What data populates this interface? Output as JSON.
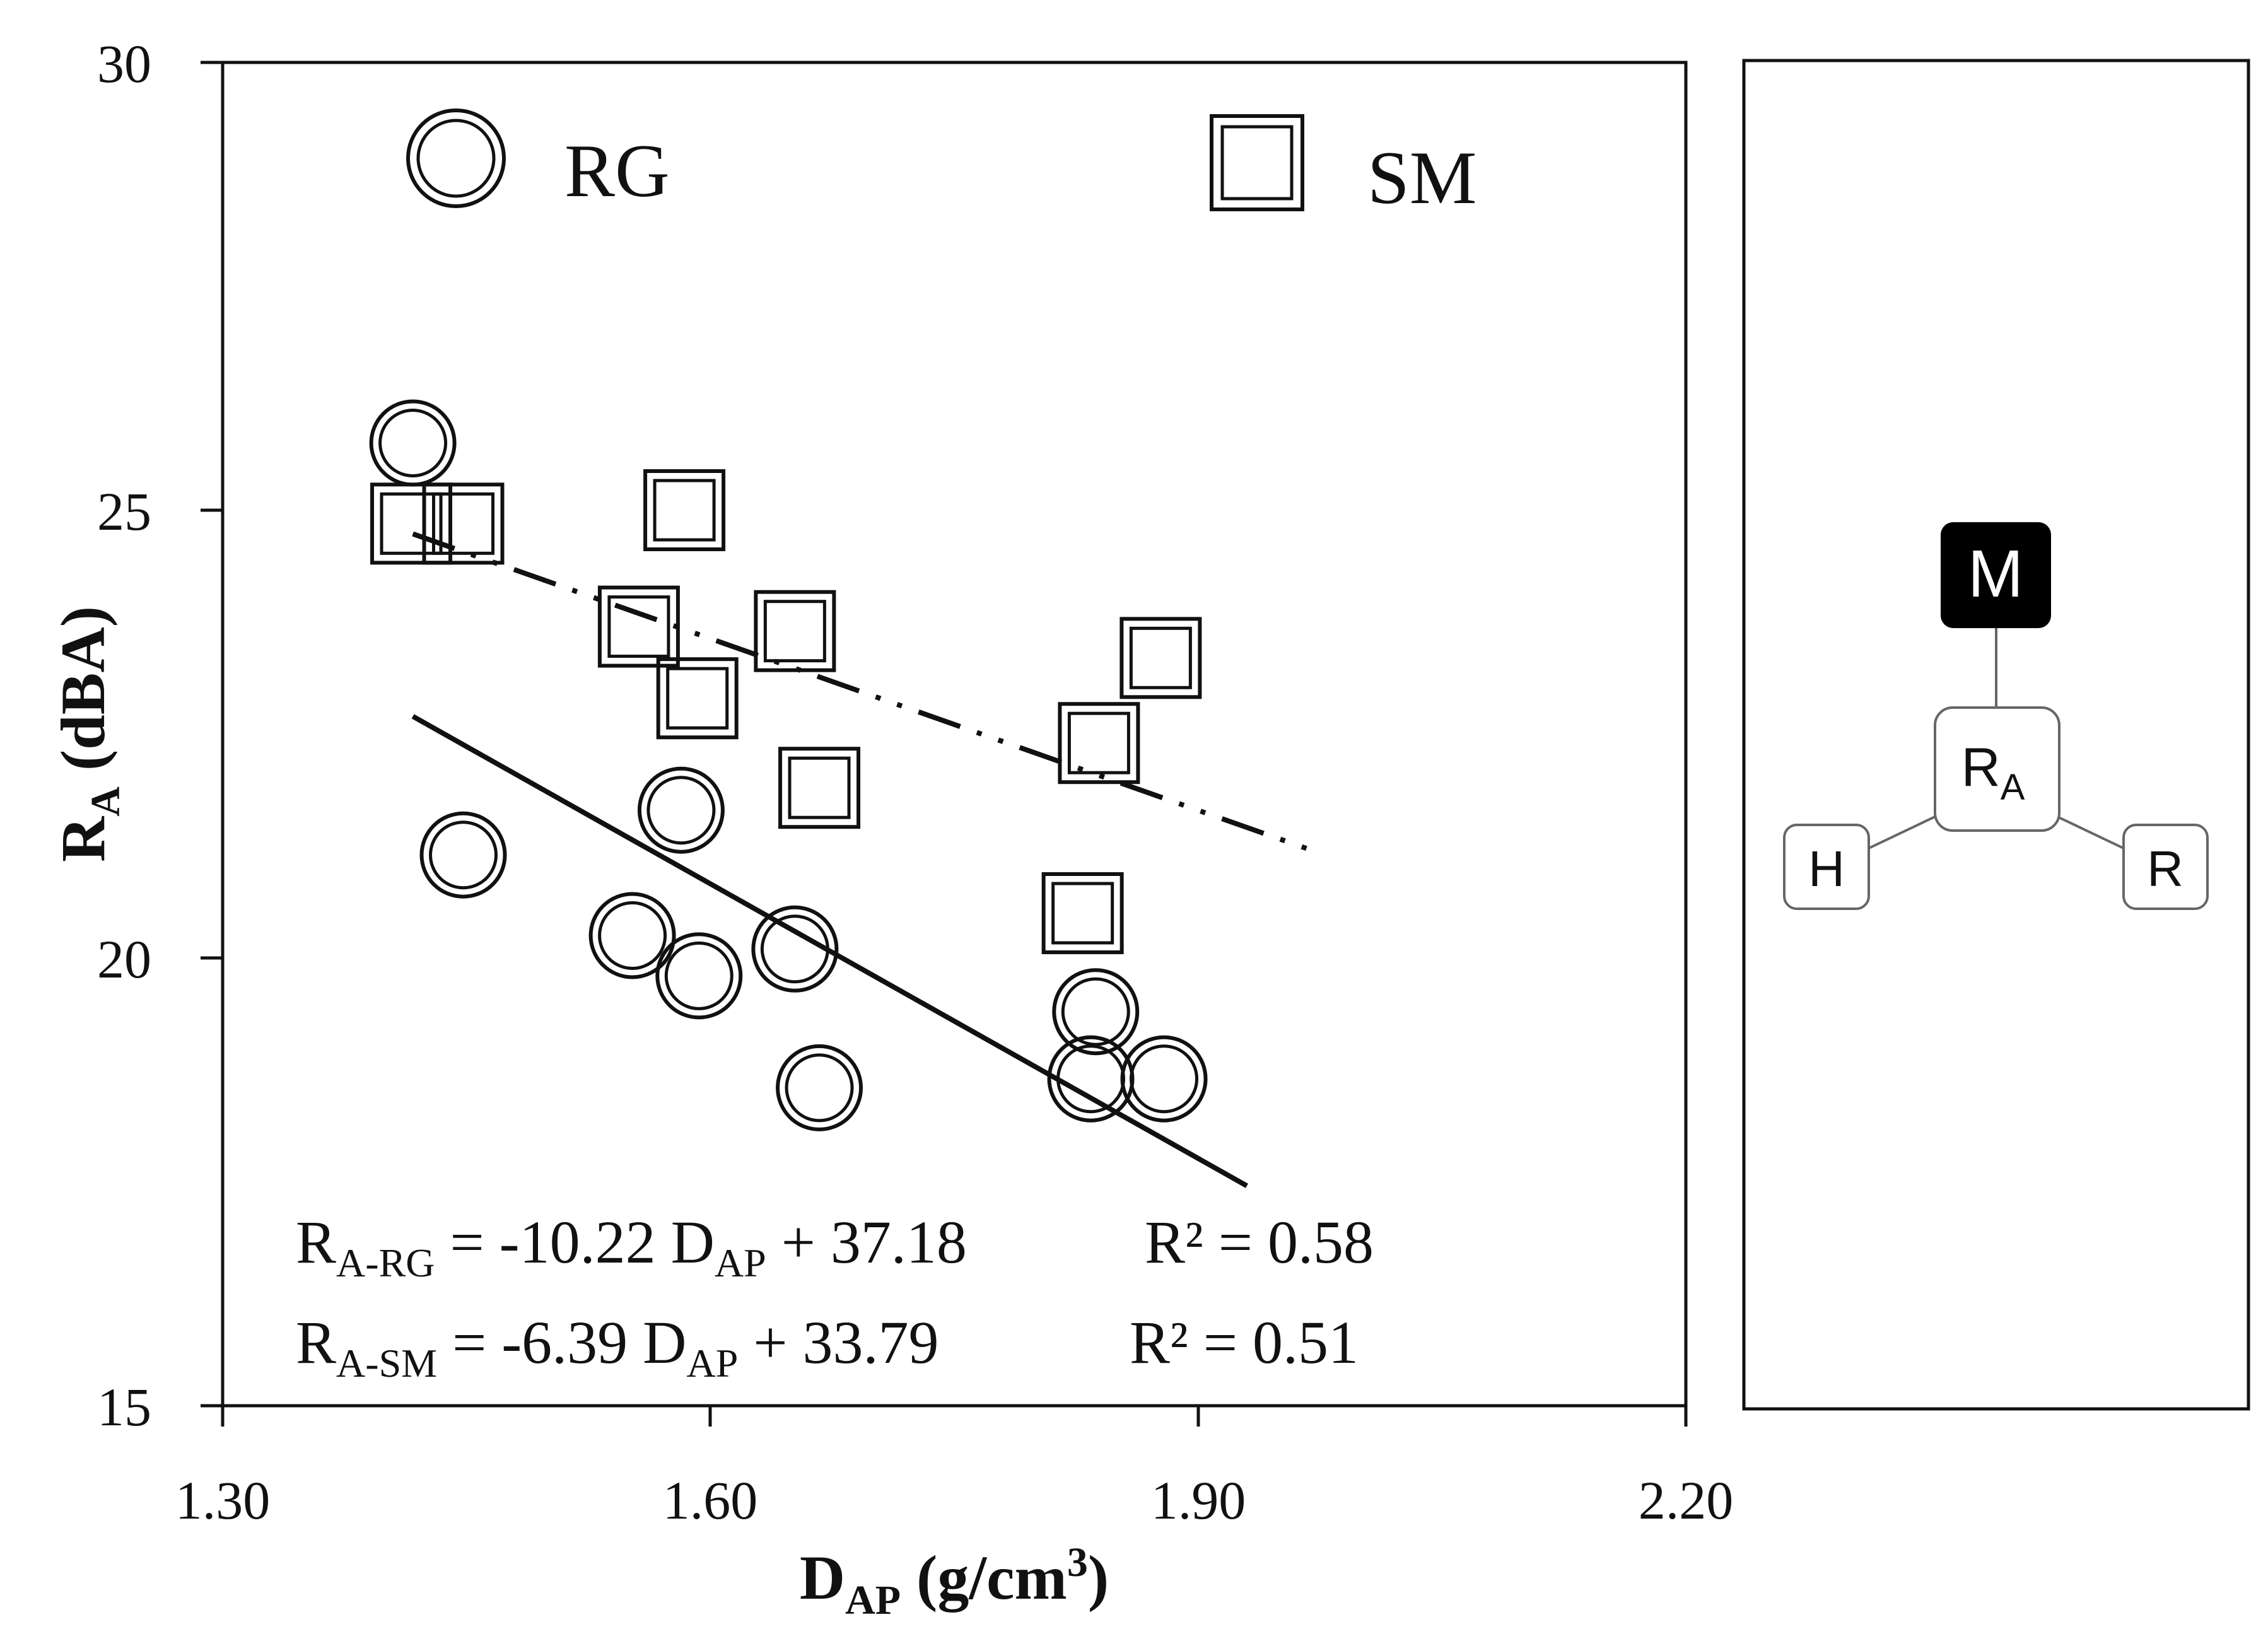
{
  "chart_data": {
    "type": "scatter",
    "title": "",
    "xlabel": {
      "main": "D",
      "sub": "AP",
      "unit_open": " (g/cm",
      "sup": "3",
      "unit_close": ")"
    },
    "ylabel": {
      "main": "R",
      "sub": "A",
      "rest": " (dBA)"
    },
    "xlim": [
      1.3,
      2.2
    ],
    "ylim": [
      15,
      30
    ],
    "xticks": [
      "1.30",
      "1.60",
      "1.90",
      "2.20"
    ],
    "yticks": [
      "15",
      "20",
      "25",
      "30"
    ],
    "grid": false,
    "legend": {
      "placement": "top",
      "items": [
        {
          "label": "RG",
          "marker": "double-circle"
        },
        {
          "label": "SM",
          "marker": "double-square"
        }
      ]
    },
    "series": [
      {
        "name": "RG",
        "marker": "double-circle",
        "points": [
          {
            "x": 1.417,
            "y": 25.75
          },
          {
            "x": 1.448,
            "y": 21.15
          },
          {
            "x": 1.552,
            "y": 20.25
          },
          {
            "x": 1.582,
            "y": 21.65
          },
          {
            "x": 1.593,
            "y": 19.8
          },
          {
            "x": 1.652,
            "y": 20.1
          },
          {
            "x": 1.667,
            "y": 18.55
          },
          {
            "x": 1.837,
            "y": 19.4
          },
          {
            "x": 1.834,
            "y": 18.65
          },
          {
            "x": 1.879,
            "y": 18.65
          }
        ],
        "trend": {
          "slope": -10.22,
          "intercept": 37.18,
          "x_range": [
            1.417,
            1.93
          ],
          "style": "solid"
        }
      },
      {
        "name": "SM",
        "marker": "double-square",
        "points": [
          {
            "x": 1.416,
            "y": 24.85
          },
          {
            "x": 1.448,
            "y": 24.85
          },
          {
            "x": 1.556,
            "y": 23.7
          },
          {
            "x": 1.584,
            "y": 25.0
          },
          {
            "x": 1.592,
            "y": 22.9
          },
          {
            "x": 1.652,
            "y": 23.65
          },
          {
            "x": 1.667,
            "y": 21.9
          },
          {
            "x": 1.829,
            "y": 20.5
          },
          {
            "x": 1.839,
            "y": 22.4
          },
          {
            "x": 1.877,
            "y": 23.35
          }
        ],
        "trend": {
          "slope": -6.39,
          "intercept": 33.79,
          "x_range": [
            1.417,
            1.97
          ],
          "style": "dash-dot-dot"
        }
      }
    ],
    "annotations": [
      {
        "main": "R",
        "sub": "A-RG",
        "eq": " = -10.22 D",
        "sub2": "AP",
        "rest": " + 37.18",
        "r2_label": "R² = 0.58"
      },
      {
        "main": "R",
        "sub": "A-SM",
        "eq": " = -6.39 D",
        "sub2": "AP",
        "rest": " + 33.79",
        "r2_label": "R² = 0.51"
      }
    ]
  },
  "side_diagram": {
    "top": "M",
    "center_main": "R",
    "center_sub": "A",
    "left": "H",
    "right": "R",
    "colors": {
      "top_fill": "#000000",
      "top_text": "#ffffff",
      "node_border": "#666666",
      "line": "#666666"
    }
  }
}
